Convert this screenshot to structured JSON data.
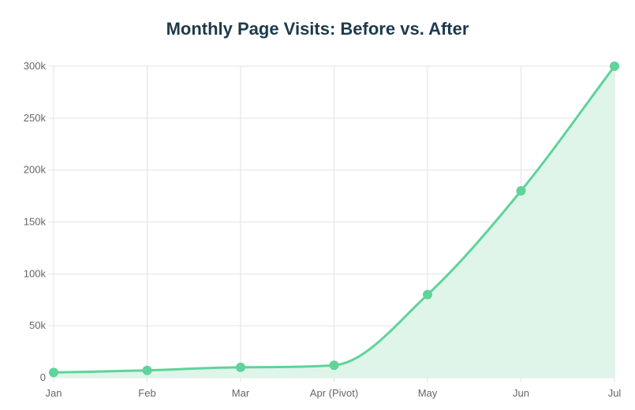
{
  "chart_data": {
    "type": "area",
    "title": "Monthly Page Visits: Before vs. After",
    "xlabel": "",
    "ylabel": "",
    "categories": [
      "Jan",
      "Feb",
      "Mar",
      "Apr (Pivot)",
      "May",
      "Jun",
      "Jul"
    ],
    "series": [
      {
        "values": [
          5000,
          7000,
          10000,
          12000,
          80000,
          180000,
          300000
        ]
      }
    ],
    "ylim": [
      0,
      300000
    ],
    "yticks": [
      0,
      50000,
      100000,
      150000,
      200000,
      250000,
      300000
    ],
    "ytick_labels": [
      "0",
      "50k",
      "100k",
      "150k",
      "200k",
      "250k",
      "300k"
    ],
    "grid": true,
    "colors": {
      "line": "#5fd39a",
      "fill": "#dff5ea",
      "grid": "#e3e3e3"
    }
  }
}
